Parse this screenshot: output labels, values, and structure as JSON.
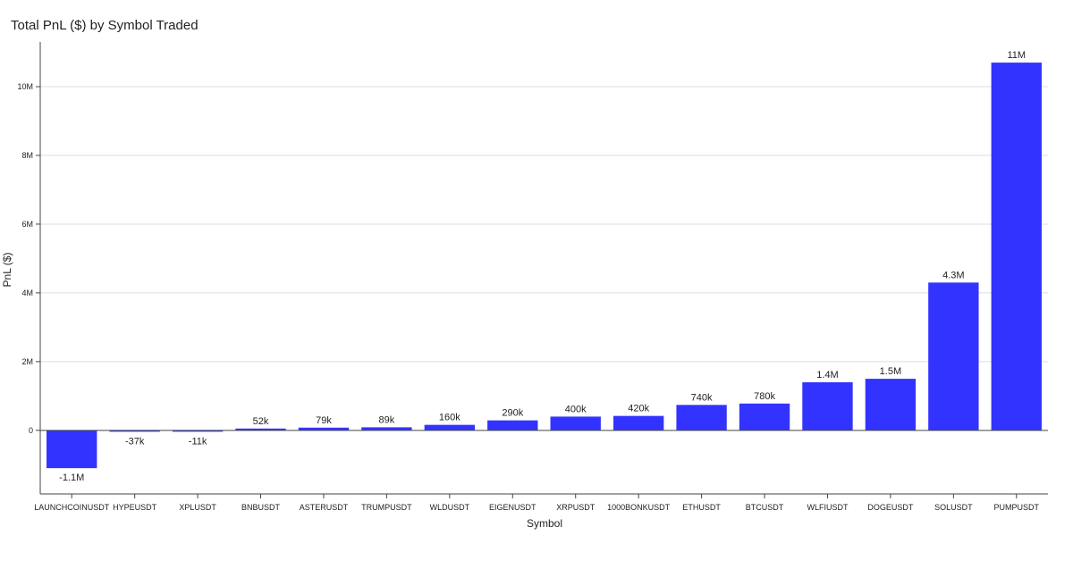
{
  "chart_data": {
    "type": "bar",
    "title": "Total PnL ($) by Symbol Traded",
    "xlabel": "Symbol",
    "ylabel": "PnL ($)",
    "ylim": [
      -1850000,
      11300000
    ],
    "grid": true,
    "bar_color": "#3333ff",
    "y_ticks": [
      {
        "value": 0,
        "label": "0"
      },
      {
        "value": 2000000,
        "label": "2M"
      },
      {
        "value": 4000000,
        "label": "4M"
      },
      {
        "value": 6000000,
        "label": "6M"
      },
      {
        "value": 8000000,
        "label": "8M"
      },
      {
        "value": 10000000,
        "label": "10M"
      }
    ],
    "categories": [
      "LAUNCHCOINUSDT",
      "HYPEUSDT",
      "XPLUSDT",
      "BNBUSDT",
      "ASTERUSDT",
      "TRUMPUSDT",
      "WLDUSDT",
      "EIGENUSDT",
      "XRPUSDT",
      "1000BONKUSDT",
      "ETHUSDT",
      "BTCUSDT",
      "WLFIUSDT",
      "DOGEUSDT",
      "SOLUSDT",
      "PUMPUSDT"
    ],
    "values": [
      -1100000,
      -37000,
      -11000,
      52000,
      79000,
      89000,
      160000,
      290000,
      400000,
      420000,
      740000,
      780000,
      1400000,
      1500000,
      4300000,
      10700000
    ],
    "data_labels": [
      "-1.1M",
      "-37k",
      "-11k",
      "52k",
      "79k",
      "89k",
      "160k",
      "290k",
      "400k",
      "420k",
      "740k",
      "780k",
      "1.4M",
      "1.5M",
      "4.3M",
      "11M"
    ]
  }
}
